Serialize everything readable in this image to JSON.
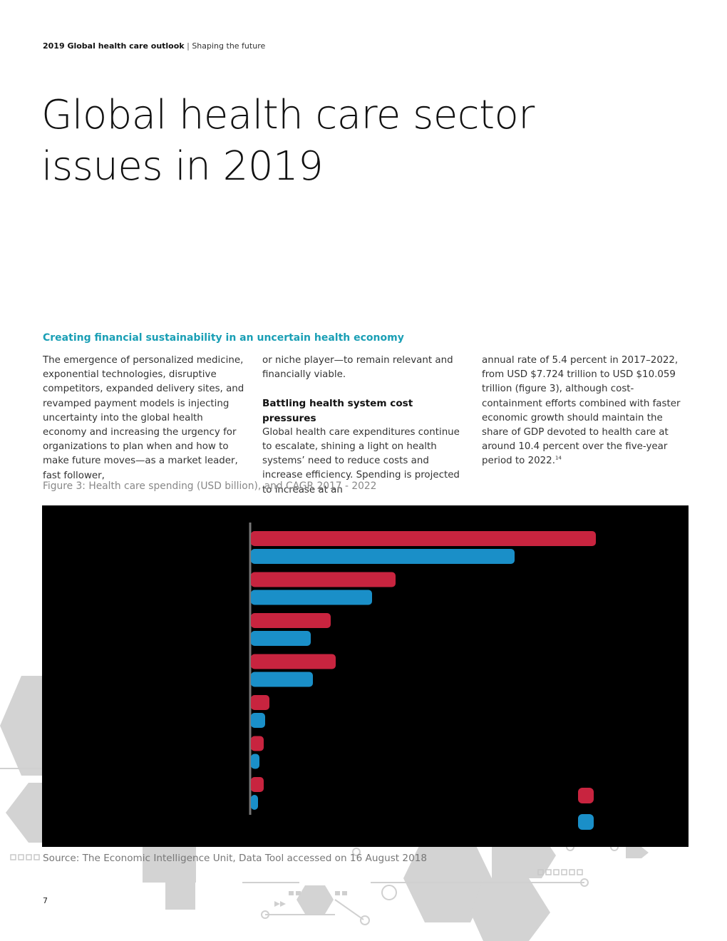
{
  "header": {
    "title": "2019 Global health care outlook",
    "separator": "|",
    "subtitle": "Shaping the future"
  },
  "page_title": "Global health care sector issues in 2019",
  "section_heading": "Creating financial sustainability in an uncertain health economy",
  "columns": {
    "col1_text": "The emergence of personalized medicine, exponential technologies, disruptive competitors, expanded delivery sites, and revamped payment models is injecting uncertainty into the global health economy and increasing the urgency for organizations to plan when and how to make future moves—as a market leader, fast follower,",
    "col2_text": "or niche player—to remain relevant and financially viable.",
    "col2_subhead": "Battling health system cost pressures",
    "col2_text2": "Global health care expenditures continue to escalate, shining a light on health systems’ need to reduce costs and increase efficiency. Spending is projected to increase at an",
    "col3_text": "annual rate of 5.4 percent in 2017–2022, from USD $7.724 trillion to USD $10.059 trillion (figure 3), although cost-containment efforts combined with faster economic growth should maintain the share of GDP devoted to health care at around 10.4 percent over the five-year period to 2022.",
    "col3_footnote": "14"
  },
  "figure_caption": "Figure 3: Health care spending (USD billion), and CAGR 2017 - 2022",
  "chart_data": {
    "type": "bar",
    "orientation": "horizontal",
    "categories": [
      "",
      "",
      "",
      "",
      "",
      "",
      ""
    ],
    "series": [
      {
        "name": "",
        "color": "#c8243f",
        "values": [
          4840,
          2030,
          1120,
          1190,
          260,
          180,
          180
        ]
      },
      {
        "name": "",
        "color": "#1a8fc8",
        "values": [
          3700,
          1700,
          840,
          870,
          200,
          120,
          100
        ]
      }
    ],
    "xlim": [
      0,
      6000
    ]
  },
  "source_text": "Source: The Economic Intelligence Unit, Data Tool accessed on 16 August 2018",
  "page_number": "7"
}
